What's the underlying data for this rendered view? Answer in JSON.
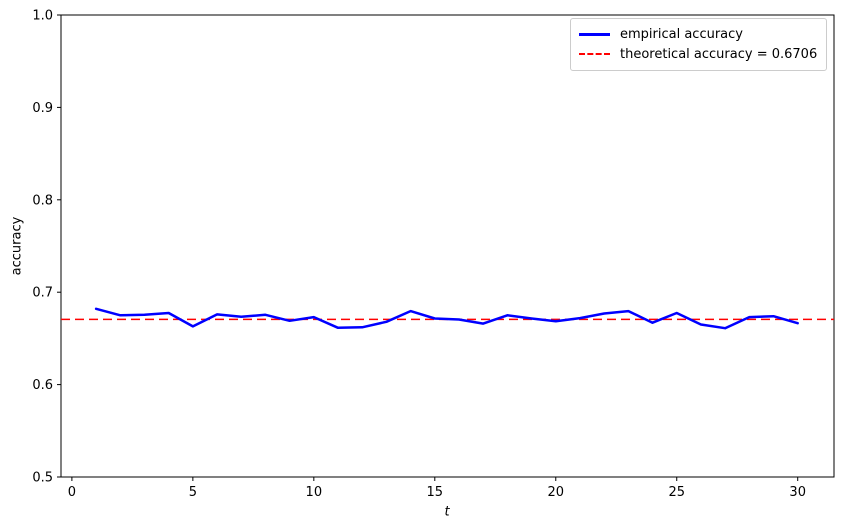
{
  "figure": {
    "background": "#ffffff",
    "spine_color": "#000000"
  },
  "chart_data": {
    "type": "line",
    "title": "",
    "xlabel": "t",
    "ylabel": "accuracy",
    "xlim": [
      -0.45,
      31.5
    ],
    "ylim": [
      0.5,
      1.0
    ],
    "xticks": [
      0,
      5,
      10,
      15,
      20,
      25,
      30
    ],
    "yticks": [
      0.5,
      0.6,
      0.7,
      0.8,
      0.9,
      1.0
    ],
    "grid": false,
    "theoretical_accuracy": 0.6706,
    "legend": {
      "position": "upper right",
      "border_color": "#cccccc"
    },
    "series": [
      {
        "name": "empirical accuracy",
        "color": "#0000ff",
        "style": "solid",
        "linewidth": 2.5,
        "x": [
          1,
          2,
          3,
          4,
          5,
          6,
          7,
          8,
          9,
          10,
          11,
          12,
          13,
          14,
          15,
          16,
          17,
          18,
          19,
          20,
          21,
          22,
          23,
          24,
          25,
          26,
          27,
          28,
          29,
          30
        ],
        "y": [
          0.682,
          0.675,
          0.6755,
          0.6775,
          0.663,
          0.676,
          0.6735,
          0.6755,
          0.669,
          0.673,
          0.6615,
          0.662,
          0.668,
          0.6795,
          0.6715,
          0.6705,
          0.666,
          0.675,
          0.6715,
          0.6685,
          0.672,
          0.677,
          0.6795,
          0.667,
          0.6775,
          0.665,
          0.661,
          0.673,
          0.674,
          0.6665
        ]
      },
      {
        "name": "theoretical accuracy = 0.6706",
        "color": "#ff0000",
        "style": "dashed",
        "linewidth": 1.5,
        "y_const": 0.6706
      }
    ]
  }
}
